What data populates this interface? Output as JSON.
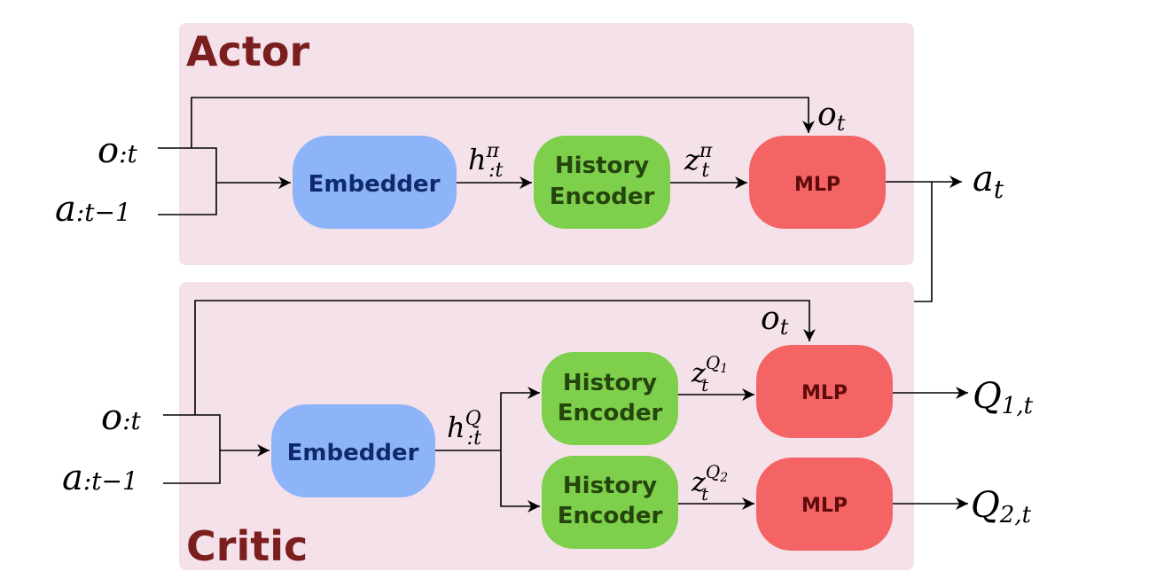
{
  "colors": {
    "panel": "#f5e1ea",
    "title": "#7a1e1e",
    "embedder": "#8db4f8",
    "embedder_text": "#0e2a6b",
    "history": "#7ecf4b",
    "history_text": "#25450e",
    "mlp": "#f46464",
    "mlp_text": "#5e0b0b",
    "line": "#000000"
  },
  "actor": {
    "title": "Actor",
    "embedder": "Embedder",
    "history_line1": "History",
    "history_line2": "Encoder",
    "mlp": "MLP",
    "inputs": {
      "obs_base": "o",
      "obs_sub": ":t",
      "act_base": "a",
      "act_sub": ":t−1"
    },
    "h": {
      "base": "h",
      "sup": "π",
      "sub": ":t"
    },
    "z": {
      "base": "z",
      "sup": "π",
      "sub": "t"
    },
    "ot": {
      "base": "o",
      "sub": "t"
    },
    "at": {
      "base": "a",
      "sub": "t"
    }
  },
  "critic": {
    "title": "Critic",
    "embedder": "Embedder",
    "history_line1": "History",
    "history_line2": "Encoder",
    "mlp": "MLP",
    "inputs": {
      "obs_base": "o",
      "obs_sub": ":t",
      "act_base": "a",
      "act_sub": ":t−1"
    },
    "h": {
      "base": "h",
      "sup": "Q",
      "sub": ":t"
    },
    "ot": {
      "base": "o",
      "sub": "t"
    },
    "z1": {
      "base": "z",
      "sup_base": "Q",
      "sup_sub": "1",
      "sub": "t"
    },
    "z2": {
      "base": "z",
      "sup_base": "Q",
      "sup_sub": "2",
      "sub": "t"
    },
    "q1": {
      "base": "Q",
      "sub": "1,t"
    },
    "q2": {
      "base": "Q",
      "sub": "2,t"
    }
  }
}
